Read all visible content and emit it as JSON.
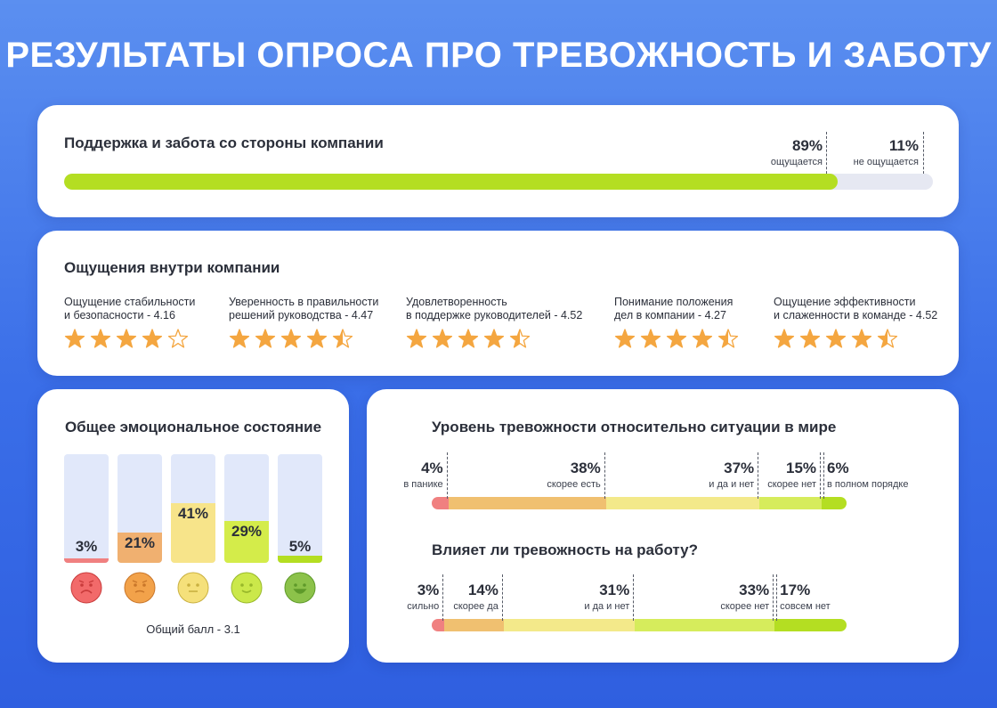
{
  "page": {
    "title": "РЕЗУЛЬТАТЫ ОПРОСА ПРО ТРЕВОЖНОСТЬ И ЗАБОТУ"
  },
  "support": {
    "title": "Поддержка и забота со стороны компании",
    "yes_pct": "89%",
    "yes_label": "ощущается",
    "no_pct": "11%",
    "no_label": "не ощущается"
  },
  "feel": {
    "title": "Ощущения внутри компании",
    "items": [
      {
        "line1": "Ощущение стабильности",
        "line2": "и безопасности - 4.16",
        "rating": 4.16
      },
      {
        "line1": "Уверенность в правильности",
        "line2": "решений руководства - 4.47",
        "rating": 4.47
      },
      {
        "line1": "Удовлетворенность",
        "line2": "в поддержке руководителей - 4.52",
        "rating": 4.52
      },
      {
        "line1": "Понимание положения",
        "line2": "дел в компании - 4.27",
        "rating": 4.27
      },
      {
        "line1": "Ощущение эффективности",
        "line2": "и слаженности в команде - 4.52",
        "rating": 4.52
      }
    ]
  },
  "emotion": {
    "title": "Общее эмоциональное состояние",
    "score": "Общий балл - 3.1"
  },
  "anxiety": {
    "title": "Уровень тревожности относительно ситуации в мире"
  },
  "work": {
    "title": "Влияет ли тревожность на работу?"
  },
  "colors": {
    "green": "#b4de22",
    "red": "#f08080",
    "orange": "#f0c070",
    "yellow": "#f3e98a",
    "lime": "#d6ec5c",
    "light_track": "#e1e8fa"
  },
  "chart_data": [
    {
      "type": "bar",
      "title": "Поддержка и забота со стороны компании",
      "categories": [
        "ощущается",
        "не ощущается"
      ],
      "values": [
        89,
        11
      ],
      "labels": [
        "89%",
        "11%"
      ]
    },
    {
      "type": "bar",
      "title": "Общее эмоциональное состояние",
      "categories": [
        "very-sad",
        "worried",
        "neutral",
        "slightly-happy",
        "happy"
      ],
      "values": [
        3,
        21,
        41,
        29,
        5
      ],
      "labels": [
        "3%",
        "21%",
        "41%",
        "29%",
        "5%"
      ],
      "colors": [
        "#f08080",
        "#f0b070",
        "#f7e48a",
        "#d4ec4a",
        "#b4de22"
      ]
    },
    {
      "type": "bar",
      "title": "Уровень тревожности относительно ситуации в мире",
      "categories": [
        "в панике",
        "скорее есть",
        "и да и нет",
        "скорее нет",
        "в полном порядке"
      ],
      "values": [
        4,
        38,
        37,
        15,
        6
      ],
      "labels": [
        "4%",
        "38%",
        "37%",
        "15%",
        "6%"
      ],
      "colors": [
        "#f08080",
        "#f0c070",
        "#f3e98a",
        "#d6ec5c",
        "#b4de22"
      ]
    },
    {
      "type": "bar",
      "title": "Влияет ли тревожность на работу?",
      "categories": [
        "сильно",
        "скорее да",
        "и да и нет",
        "скорее нет",
        "совсем нет"
      ],
      "values": [
        3,
        14,
        31,
        33,
        17
      ],
      "labels": [
        "3%",
        "14%",
        "31%",
        "33%",
        "17%"
      ],
      "colors": [
        "#f08080",
        "#f0c070",
        "#f3e98a",
        "#d6ec5c",
        "#b4de22"
      ]
    }
  ]
}
